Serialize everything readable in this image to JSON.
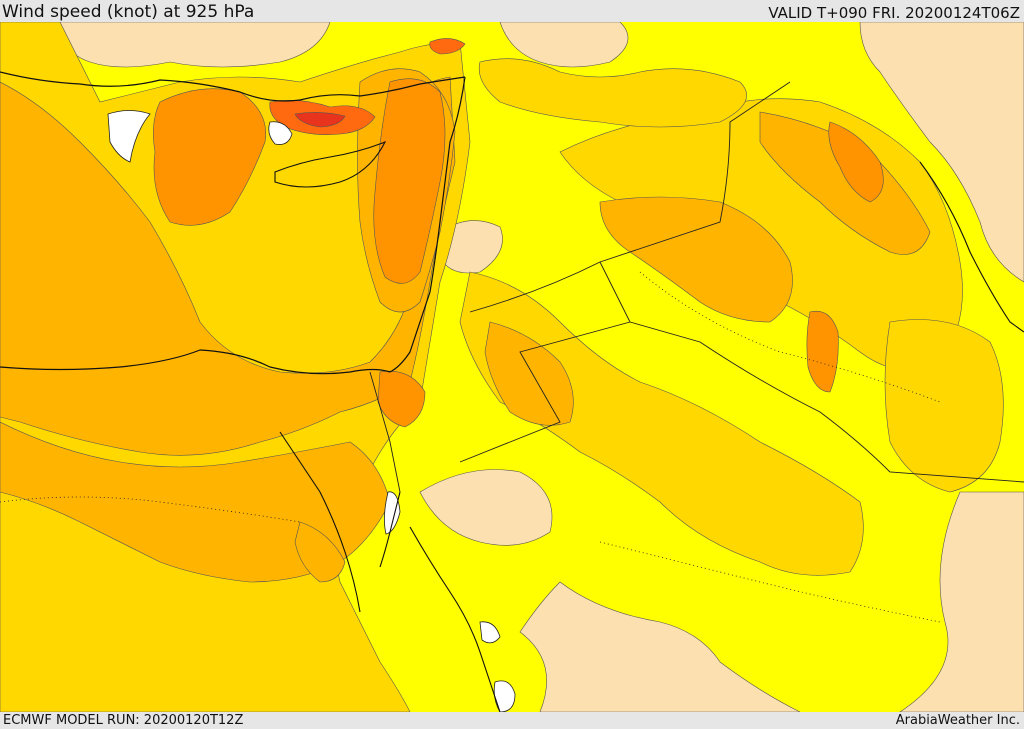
{
  "header": {
    "title": "Wind speed (knot) at 925 hPa",
    "valid_time": "VALID T+090 FRI. 20200124T06Z"
  },
  "footer": {
    "model_run": "ECMWF MODEL RUN: 20200120T12Z",
    "credit": "ArabiaWeather Inc."
  },
  "palette": {
    "sea_water": "#ffffff",
    "band_lightest": "#fde0b0",
    "band_yellow": "#ffff00",
    "band_golden": "#ffd800",
    "band_amber": "#ffb400",
    "band_orange": "#ff9400",
    "band_red_orange": "#ff6a10",
    "band_red": "#e8341c",
    "coastline": "#111111",
    "border": "#222222"
  }
}
